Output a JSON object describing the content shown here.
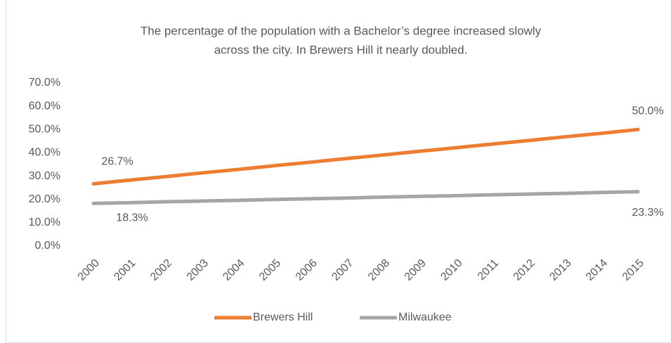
{
  "chart_data": {
    "type": "line",
    "title": [
      "The percentage of the population with a Bachelor’s degree increased slowly",
      "across the city. In Brewers Hill it nearly doubled."
    ],
    "categories": [
      "2000",
      "2001",
      "2002",
      "2003",
      "2004",
      "2005",
      "2006",
      "2007",
      "2008",
      "2009",
      "2010",
      "2011",
      "2012",
      "2013",
      "2014",
      "2015"
    ],
    "series": [
      {
        "name": "Brewers Hill",
        "color": "#ed7d31",
        "values": [
          26.7,
          28.3,
          29.8,
          31.4,
          32.9,
          34.5,
          36.0,
          37.6,
          39.1,
          40.7,
          42.2,
          43.8,
          45.3,
          46.9,
          48.4,
          50.0
        ],
        "value_labels": [
          "26.7%",
          null,
          null,
          null,
          null,
          null,
          null,
          null,
          null,
          null,
          null,
          null,
          null,
          null,
          null,
          "50.0%"
        ]
      },
      {
        "name": "Milwaukee",
        "color": "#a5a5a5",
        "values": [
          18.3,
          18.6,
          19.0,
          19.3,
          19.6,
          20.0,
          20.3,
          20.6,
          21.0,
          21.3,
          21.6,
          22.0,
          22.3,
          22.6,
          23.0,
          23.3
        ],
        "value_labels": [
          "18.3%",
          null,
          null,
          null,
          null,
          null,
          null,
          null,
          null,
          null,
          null,
          null,
          null,
          null,
          null,
          "23.3%"
        ]
      }
    ],
    "ylim": [
      0,
      70
    ],
    "yticks": [
      {
        "value": 0,
        "label": "0.0%"
      },
      {
        "value": 10,
        "label": "10.0%"
      },
      {
        "value": 20,
        "label": "20.0%"
      },
      {
        "value": 30,
        "label": "30.0%"
      },
      {
        "value": 40,
        "label": "40.0%"
      },
      {
        "value": 50,
        "label": "50.0%"
      },
      {
        "value": 60,
        "label": "60.0%"
      },
      {
        "value": 70,
        "label": "70.0%"
      }
    ],
    "grid": false,
    "legend": "bottom"
  }
}
